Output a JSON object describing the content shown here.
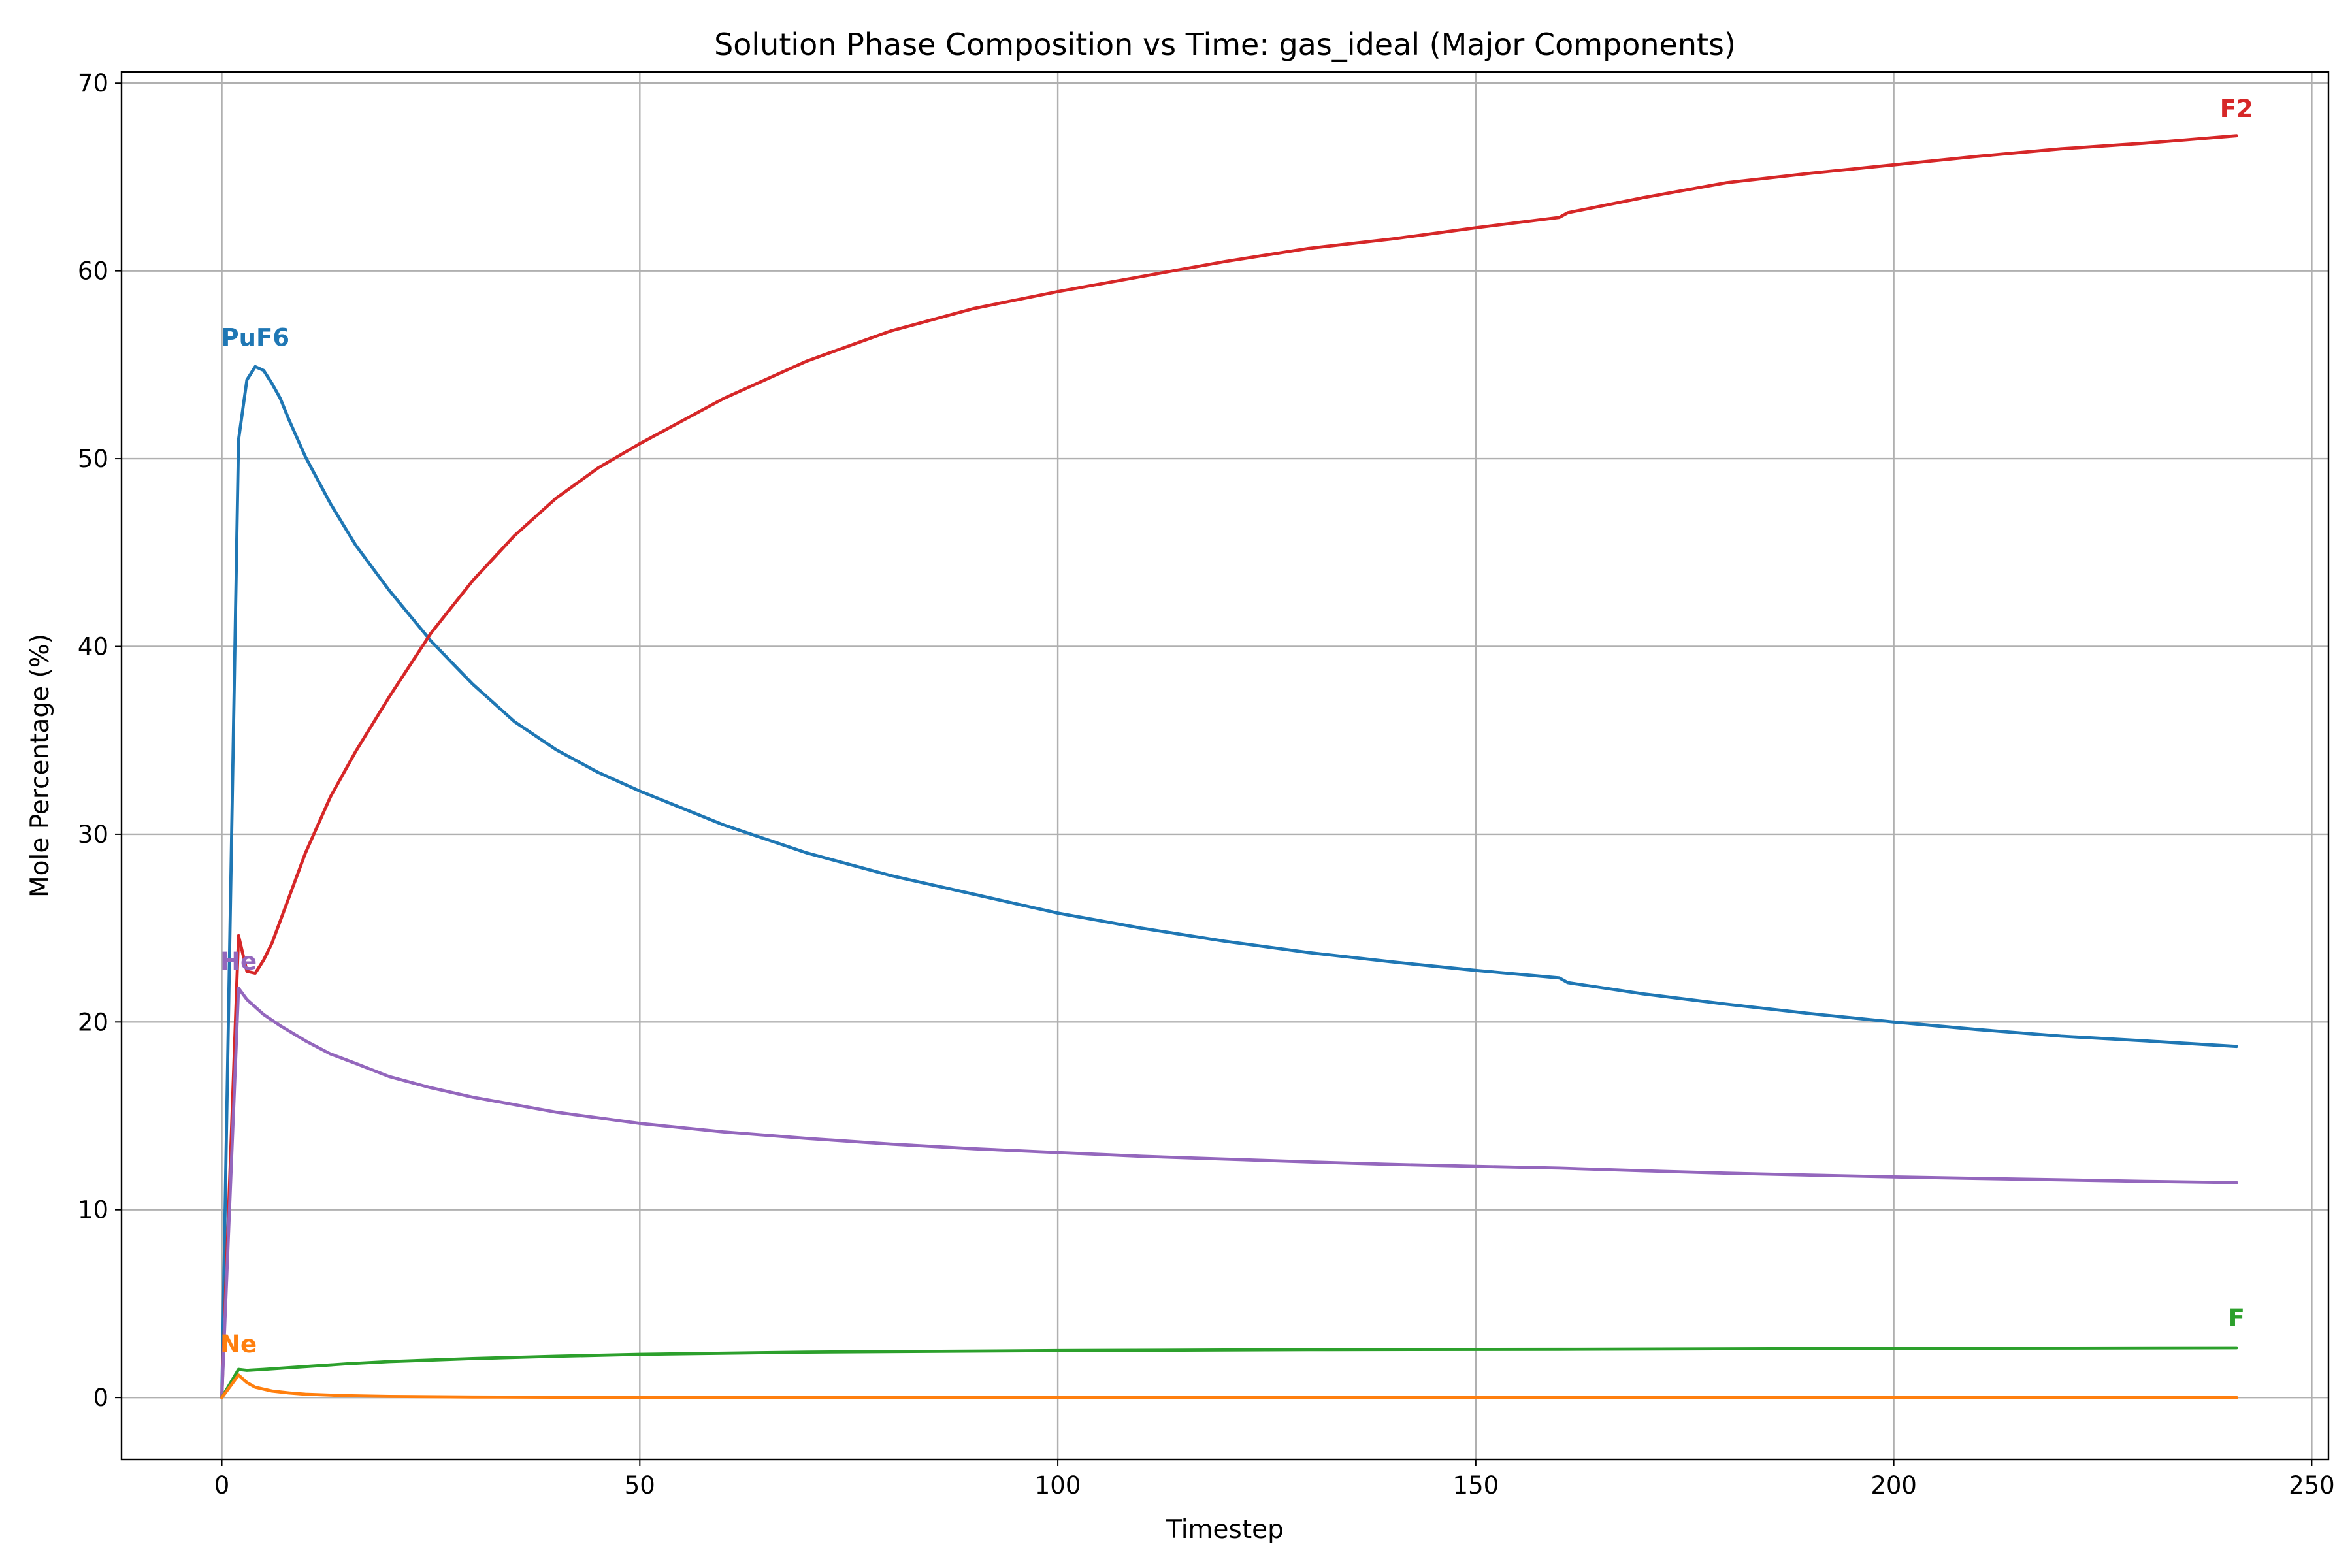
{
  "chart_data": {
    "type": "line",
    "title": "Solution Phase Composition vs Time: gas_ideal (Major Components)",
    "xlabel": "Timestep",
    "ylabel": "Mole Percentage (%)",
    "xlim": [
      -12,
      252
    ],
    "ylim": [
      -3.3,
      70.6
    ],
    "xticks": [
      0,
      50,
      100,
      150,
      200,
      250
    ],
    "yticks": [
      0,
      10,
      20,
      30,
      40,
      50,
      60,
      70
    ],
    "grid": true,
    "legend": "none",
    "series": [
      {
        "name": "PuF6",
        "color": "#1f77b4",
        "x": [
          0,
          2,
          3,
          4,
          5,
          6,
          7,
          8,
          10,
          13,
          16,
          20,
          25,
          30,
          35,
          40,
          45,
          50,
          60,
          70,
          80,
          90,
          100,
          110,
          120,
          130,
          140,
          150,
          160,
          161,
          170,
          180,
          190,
          200,
          210,
          220,
          230,
          241
        ],
        "y": [
          0,
          51,
          54.2,
          54.9,
          54.7,
          54.0,
          53.2,
          52.1,
          50.1,
          47.6,
          45.4,
          43.0,
          40.3,
          38.0,
          36.0,
          34.5,
          33.3,
          32.3,
          30.5,
          29.0,
          27.8,
          26.8,
          25.8,
          25.0,
          24.3,
          23.7,
          23.2,
          22.75,
          22.35,
          22.1,
          21.5,
          20.95,
          20.45,
          20.0,
          19.6,
          19.25,
          19.0,
          18.7
        ]
      },
      {
        "name": "F2",
        "color": "#d62728",
        "x": [
          0,
          2,
          3,
          4,
          5,
          6,
          7,
          8,
          10,
          13,
          16,
          20,
          25,
          30,
          35,
          40,
          45,
          50,
          60,
          70,
          80,
          90,
          100,
          110,
          120,
          130,
          140,
          150,
          160,
          161,
          170,
          180,
          190,
          200,
          210,
          220,
          230,
          241
        ],
        "y": [
          0,
          24.6,
          22.7,
          22.6,
          23.3,
          24.2,
          25.4,
          26.6,
          29.0,
          32.0,
          34.4,
          37.3,
          40.7,
          43.5,
          45.9,
          47.9,
          49.5,
          50.8,
          53.2,
          55.2,
          56.8,
          58.0,
          58.9,
          59.7,
          60.5,
          61.2,
          61.7,
          62.3,
          62.85,
          63.1,
          63.9,
          64.7,
          65.2,
          65.65,
          66.1,
          66.5,
          66.8,
          67.2
        ]
      },
      {
        "name": "He",
        "color": "#9467bd",
        "x": [
          0,
          2,
          3,
          4,
          5,
          7,
          10,
          13,
          16,
          20,
          25,
          30,
          35,
          40,
          45,
          50,
          60,
          70,
          80,
          90,
          100,
          110,
          120,
          130,
          140,
          150,
          160,
          170,
          180,
          190,
          200,
          210,
          220,
          230,
          241
        ],
        "y": [
          0,
          21.8,
          21.2,
          20.8,
          20.4,
          19.8,
          19.0,
          18.3,
          17.8,
          17.1,
          16.5,
          16.0,
          15.6,
          15.2,
          14.9,
          14.6,
          14.15,
          13.8,
          13.5,
          13.25,
          13.05,
          12.85,
          12.7,
          12.55,
          12.42,
          12.32,
          12.22,
          12.08,
          11.95,
          11.85,
          11.75,
          11.67,
          11.6,
          11.52,
          11.45
        ]
      },
      {
        "name": "F",
        "color": "#2ca02c",
        "x": [
          0,
          2,
          3,
          5,
          10,
          15,
          20,
          30,
          40,
          50,
          70,
          100,
          130,
          160,
          200,
          241
        ],
        "y": [
          0,
          1.5,
          1.45,
          1.5,
          1.65,
          1.8,
          1.92,
          2.08,
          2.2,
          2.3,
          2.42,
          2.5,
          2.55,
          2.57,
          2.62,
          2.65
        ]
      },
      {
        "name": "Ne",
        "color": "#ff7f0e",
        "x": [
          0,
          2,
          3,
          4,
          6,
          8,
          10,
          15,
          20,
          30,
          50,
          241
        ],
        "y": [
          0,
          1.2,
          0.8,
          0.55,
          0.35,
          0.25,
          0.18,
          0.1,
          0.06,
          0.03,
          0.01,
          0.0
        ]
      }
    ],
    "annotations": [
      {
        "text": "PuF6",
        "x": 4,
        "y": 56,
        "color": "#1f77b4"
      },
      {
        "text": "F2",
        "x": 241,
        "y": 68.2,
        "color": "#d62728"
      },
      {
        "text": "He",
        "x": 2,
        "y": 22.8,
        "color": "#9467bd"
      },
      {
        "text": "F",
        "x": 241,
        "y": 3.8,
        "color": "#2ca02c"
      },
      {
        "text": "Ne",
        "x": 2,
        "y": 2.4,
        "color": "#ff7f0e"
      }
    ]
  }
}
